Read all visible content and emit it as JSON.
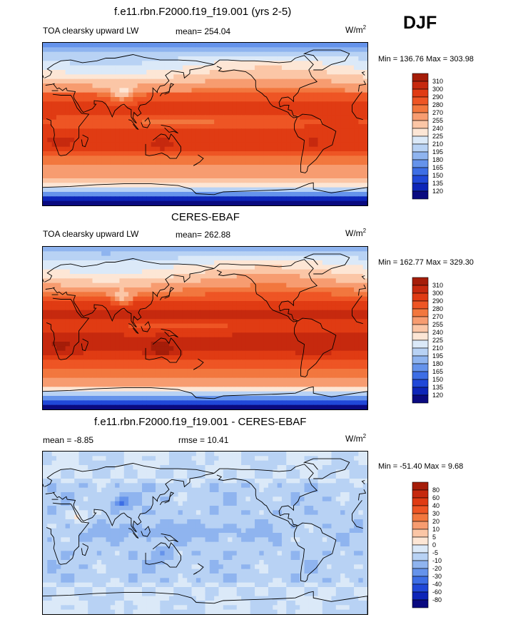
{
  "season": "DJF",
  "panels": [
    {
      "id": "model",
      "title": "f.e11.rbn.F2000.f19_f19.001 (yrs 2-5)",
      "left_label": "TOA clearsky upward LW",
      "center_label": "mean= 254.04",
      "unit_base": "W/m",
      "unit_sup": "2",
      "minmax": "Min = 136.76 Max = 303.98",
      "levels": [
        "310",
        "300",
        "290",
        "280",
        "270",
        "255",
        "240",
        "225",
        "210",
        "195",
        "180",
        "165",
        "150",
        "135",
        "120"
      ],
      "colors": [
        "#a51d09",
        "#c6290e",
        "#e03b13",
        "#ee5524",
        "#f2773e",
        "#f79c70",
        "#fbc6a6",
        "#fde6d5",
        "#dbe9f8",
        "#b8d2f4",
        "#8fb4ef",
        "#6593eb",
        "#3d6ee5",
        "#2048d8",
        "#0d25b8",
        "#0a0a80"
      ],
      "field": "lw",
      "bias": 0
    },
    {
      "id": "obs",
      "title": "CERES-EBAF",
      "left_label": "TOA clearsky upward LW",
      "center_label": "mean= 262.88",
      "unit_base": "W/m",
      "unit_sup": "2",
      "minmax": "Min = 162.77 Max = 329.30",
      "levels": [
        "310",
        "300",
        "290",
        "280",
        "270",
        "255",
        "240",
        "225",
        "210",
        "195",
        "180",
        "165",
        "150",
        "135",
        "120"
      ],
      "colors": [
        "#a51d09",
        "#c6290e",
        "#e03b13",
        "#ee5524",
        "#f2773e",
        "#f79c70",
        "#fbc6a6",
        "#fde6d5",
        "#dbe9f8",
        "#b8d2f4",
        "#8fb4ef",
        "#6593eb",
        "#3d6ee5",
        "#2048d8",
        "#0d25b8",
        "#0a0a80"
      ],
      "field": "lw",
      "bias": 9
    },
    {
      "id": "diff",
      "title": "f.e11.rbn.F2000.f19_f19.001 - CERES-EBAF",
      "left_label": "mean =  -8.85",
      "center_label": "rmse =  10.41",
      "unit_base": "W/m",
      "unit_sup": "2",
      "minmax": "Min = -51.40 Max =   9.68",
      "levels": [
        "80",
        "60",
        "40",
        "30",
        "20",
        "10",
        "5",
        "0",
        "-5",
        "-10",
        "-20",
        "-30",
        "-40",
        "-60",
        "-80"
      ],
      "colors": [
        "#a51d09",
        "#c6290e",
        "#e03b13",
        "#ee5524",
        "#f2773e",
        "#f79c70",
        "#fbc6a6",
        "#fde6d5",
        "#dbe9f8",
        "#b8d2f4",
        "#8fb4ef",
        "#6593eb",
        "#3d6ee5",
        "#2048d8",
        "#0d25b8",
        "#0a0a80"
      ],
      "field": "diff",
      "bias": 0
    }
  ],
  "chart_data": [
    {
      "type": "heatmap",
      "title": "f.e11.rbn.F2000.f19_f19.001 (yrs 2-5)",
      "variable": "TOA clearsky upward LW",
      "units": "W/m2",
      "mean": 254.04,
      "min": 136.76,
      "max": 303.98,
      "contour_levels": [
        120,
        135,
        150,
        165,
        180,
        195,
        210,
        225,
        240,
        255,
        270,
        280,
        290,
        300,
        310
      ]
    },
    {
      "type": "heatmap",
      "title": "CERES-EBAF",
      "variable": "TOA clearsky upward LW",
      "units": "W/m2",
      "mean": 262.88,
      "min": 162.77,
      "max": 329.3,
      "contour_levels": [
        120,
        135,
        150,
        165,
        180,
        195,
        210,
        225,
        240,
        255,
        270,
        280,
        290,
        300,
        310
      ]
    },
    {
      "type": "heatmap",
      "title": "f.e11.rbn.F2000.f19_f19.001 - CERES-EBAF",
      "units": "W/m2",
      "mean": -8.85,
      "rmse": 10.41,
      "min": -51.4,
      "max": 9.68,
      "contour_levels": [
        -80,
        -60,
        -40,
        -30,
        -20,
        -10,
        -5,
        0,
        5,
        10,
        20,
        30,
        40,
        60,
        80
      ]
    }
  ]
}
